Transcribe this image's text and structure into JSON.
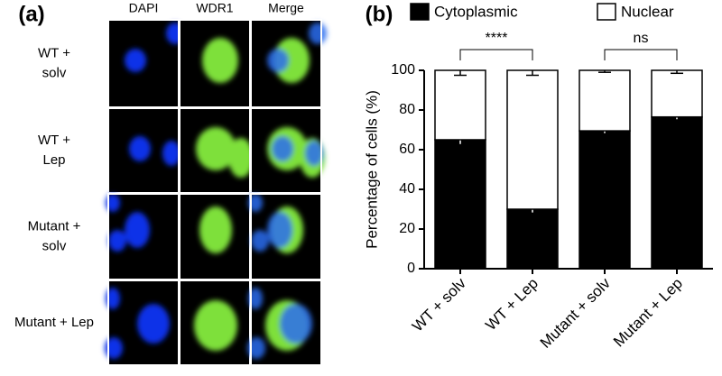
{
  "panel_a": {
    "label": "(a)",
    "columns": [
      "DAPI",
      "WDR1",
      "Merge"
    ],
    "rows": [
      [
        "WT +",
        "solv"
      ],
      [
        "WT +",
        "Lep"
      ],
      [
        "Mutant +",
        "solv"
      ],
      [
        "Mutant + Lep"
      ]
    ]
  },
  "chart_data": {
    "type": "stacked-bar",
    "panel_label": "(b)",
    "y_label": "Percentage of cells (%)",
    "categories": [
      "WT + solv",
      "WT + Lep",
      "Mutant + solv",
      "Mutant + Lep"
    ],
    "series": [
      {
        "name": "Cytoplasmic",
        "color": "#000000",
        "values": [
          65,
          30,
          69.5,
          76.5
        ],
        "errors": [
          2.5,
          2,
          1.5,
          1.5
        ]
      },
      {
        "name": "Nuclear",
        "color": "#ffffff",
        "values": [
          35,
          70,
          30.5,
          23.5
        ],
        "errors": [
          2.5,
          2.5,
          1,
          1.5
        ]
      }
    ],
    "ylim": [
      0,
      100
    ],
    "yticks": [
      0,
      20,
      40,
      60,
      80,
      100
    ],
    "annotations": [
      {
        "text": "****",
        "between": [
          0,
          1
        ]
      },
      {
        "text": "ns",
        "between": [
          2,
          3
        ]
      }
    ]
  }
}
